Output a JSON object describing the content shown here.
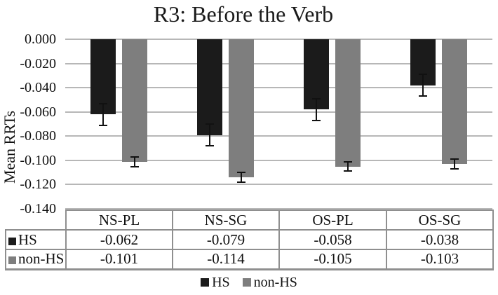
{
  "chart_data": {
    "type": "bar",
    "title": "R3: Before the Verb",
    "ylabel": "Mean RRTs",
    "xlabel": "",
    "categories": [
      "NS-PL",
      "NS-SG",
      "OS-PL",
      "OS-SG"
    ],
    "series": [
      {
        "name": "HS",
        "color": "#1b1b1b",
        "values": [
          -0.062,
          -0.079,
          -0.058,
          -0.038
        ],
        "value_labels": [
          "-0.062",
          "-0.079",
          "-0.058",
          "-0.038"
        ],
        "error": 0.009
      },
      {
        "name": "non-HS",
        "color": "#7e7e7e",
        "values": [
          -0.101,
          -0.114,
          -0.105,
          -0.103
        ],
        "value_labels": [
          "-0.101",
          "-0.114",
          "-0.105",
          "-0.103"
        ],
        "error": 0.004
      }
    ],
    "ylim": [
      -0.14,
      0
    ],
    "ytick_labels": [
      "0.000",
      "-0.020",
      "-0.040",
      "-0.060",
      "-0.080",
      "-0.100",
      "-0.120",
      "-0.140"
    ],
    "grid": true,
    "legend_position": "bottom",
    "data_table_shown": true
  },
  "styles": {
    "gridline_color": "#b7b7b7",
    "table_border_color": "#8f8f8f",
    "error_bar_color": "#111111",
    "text_color": "#111111",
    "background": "#ffffff"
  }
}
